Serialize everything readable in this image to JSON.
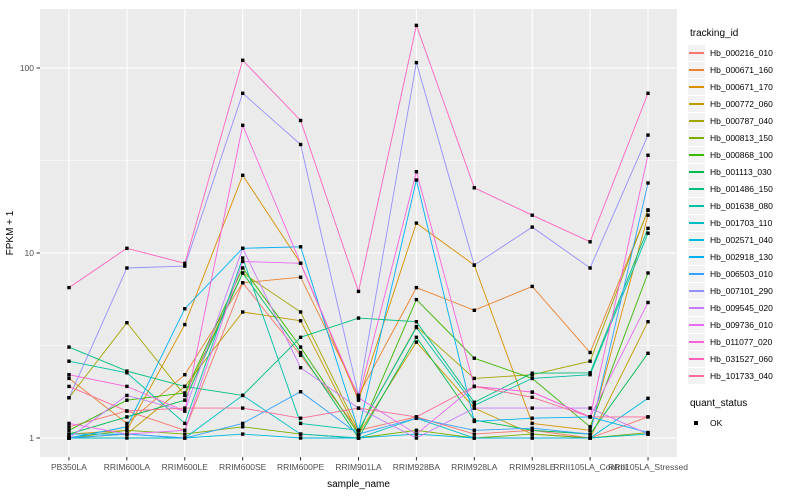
{
  "figure": {
    "panel_bg": "#EBEBEB",
    "grid_color": "#FFFFFF",
    "tick_label_color": "#4D4D4D",
    "axis_title_color": "#000000",
    "point_color": "#000000"
  },
  "axes": {
    "x_label": "sample_name",
    "y_label": "FPKM + 1",
    "y_tick_labels": [
      "1",
      "10",
      "100"
    ],
    "y_tick_values": [
      1,
      10,
      100
    ]
  },
  "legend": {
    "tracking_title": "tracking_id",
    "quant_title": "quant_status",
    "quant_items": [
      {
        "label": "OK",
        "marker": "black-square"
      }
    ]
  },
  "chart_data": {
    "type": "line",
    "title": "",
    "xlabel": "sample_name",
    "ylabel": "FPKM + 1",
    "yscale": "log10",
    "ylim": [
      0.95,
      210
    ],
    "grid": "on",
    "legend_position": "right",
    "point_marker": "filled-square-black",
    "categories": [
      "PB350LA",
      "RRIM600LA",
      "RRIM600LE",
      "RRIM600SE",
      "RRIM600PE",
      "RRIM901LA",
      "RRIM928BA",
      "RRIM928LA",
      "RRIM928LE",
      "RRII105LA_Control",
      "RRII105LA_Stressed"
    ],
    "series": [
      {
        "name": "Hb_000216_010",
        "color": "#F8766D",
        "values": [
          1.15,
          1.4,
          1.1,
          6.9,
          2.8,
          1.1,
          1.3,
          1.05,
          1.1,
          1.0,
          1.3
        ]
      },
      {
        "name": "Hb_000671_160",
        "color": "#EA8331",
        "values": [
          2.1,
          1.2,
          2.2,
          6.9,
          7.4,
          1.7,
          6.5,
          4.9,
          6.6,
          2.9,
          17.0
        ]
      },
      {
        "name": "Hb_000671_170",
        "color": "#D89000",
        "values": [
          1.05,
          1.1,
          4.1,
          26.3,
          8.8,
          1.6,
          14.5,
          8.6,
          1.2,
          1.1,
          16.0
        ]
      },
      {
        "name": "Hb_000772_060",
        "color": "#C09B00",
        "values": [
          1.0,
          1.05,
          1.9,
          4.8,
          4.3,
          1.05,
          3.3,
          1.45,
          1.05,
          1.0,
          4.25
        ]
      },
      {
        "name": "Hb_000787_040",
        "color": "#A3A500",
        "values": [
          1.65,
          4.2,
          1.7,
          7.8,
          4.8,
          1.1,
          4.0,
          2.1,
          2.2,
          2.6,
          17.1
        ]
      },
      {
        "name": "Hb_000813_150",
        "color": "#7CAE00",
        "values": [
          1.0,
          1.1,
          1.05,
          1.15,
          1.05,
          1.0,
          1.1,
          1.0,
          1.05,
          1.0,
          1.07
        ]
      },
      {
        "name": "Hb_000868_100",
        "color": "#39B600",
        "values": [
          1.1,
          1.6,
          1.75,
          8.3,
          3.1,
          1.05,
          5.6,
          2.7,
          2.1,
          1.15,
          7.8
        ]
      },
      {
        "name": "Hb_001113_030",
        "color": "#00BB4E",
        "values": [
          1.05,
          1.3,
          1.6,
          7.8,
          2.9,
          1.0,
          3.5,
          1.25,
          1.1,
          1.05,
          2.87
        ]
      },
      {
        "name": "Hb_001486_150",
        "color": "#00BF7D",
        "values": [
          3.1,
          2.3,
          1.9,
          1.7,
          3.5,
          4.45,
          4.25,
          1.56,
          2.24,
          2.25,
          13.6
        ]
      },
      {
        "name": "Hb_001638_080",
        "color": "#00C1A3",
        "values": [
          2.6,
          2.25,
          1.2,
          9.4,
          1.2,
          1.1,
          3.95,
          1.5,
          2.1,
          2.2,
          12.8
        ]
      },
      {
        "name": "Hb_001703_110",
        "color": "#00BFC4",
        "values": [
          1.0,
          1.0,
          1.0,
          1.7,
          1.05,
          1.0,
          1.28,
          1.0,
          1.0,
          1.0,
          1.05
        ]
      },
      {
        "name": "Hb_002571_040",
        "color": "#00BADE",
        "values": [
          1.05,
          1.05,
          1.0,
          1.05,
          1.0,
          1.0,
          1.05,
          1.0,
          1.0,
          1.0,
          1.64
        ]
      },
      {
        "name": "Hb_002918_130",
        "color": "#00B0F6",
        "values": [
          1.0,
          1.15,
          5.0,
          10.6,
          10.8,
          1.1,
          24.8,
          1.23,
          1.28,
          1.3,
          1.07
        ]
      },
      {
        "name": "Hb_006503_010",
        "color": "#35A2FF",
        "values": [
          1.0,
          1.05,
          1.0,
          1.2,
          1.78,
          1.05,
          1.28,
          1.1,
          1.13,
          1.05,
          23.9
        ]
      },
      {
        "name": "Hb_007101_290",
        "color": "#9590FF",
        "values": [
          1.65,
          8.3,
          8.5,
          73.0,
          38.6,
          1.7,
          107.0,
          8.6,
          13.8,
          8.3,
          43.4
        ]
      },
      {
        "name": "Hb_009545_020",
        "color": "#C77CFF",
        "values": [
          1.0,
          1.7,
          1.4,
          10.6,
          2.4,
          1.45,
          1.0,
          1.45,
          1.45,
          1.45,
          1.05
        ]
      },
      {
        "name": "Hb_009736_010",
        "color": "#E76BF3",
        "values": [
          1.2,
          1.05,
          1.1,
          9.0,
          8.8,
          1.65,
          1.05,
          1.9,
          1.77,
          1.3,
          5.4
        ]
      },
      {
        "name": "Hb_011077_020",
        "color": "#FA62DB",
        "values": [
          2.2,
          1.9,
          1.4,
          49.0,
          8.8,
          1.65,
          27.5,
          1.9,
          1.77,
          1.3,
          33.8
        ]
      },
      {
        "name": "Hb_031527_060",
        "color": "#FF62BC",
        "values": [
          6.5,
          10.6,
          8.8,
          110.0,
          52.0,
          6.2,
          170.0,
          22.5,
          16.0,
          11.5,
          73.0
        ]
      },
      {
        "name": "Hb_101733_040",
        "color": "#FF6A98",
        "values": [
          1.9,
          1.4,
          1.45,
          1.45,
          1.28,
          1.45,
          1.3,
          1.9,
          1.66,
          1.3,
          1.3
        ]
      }
    ]
  }
}
